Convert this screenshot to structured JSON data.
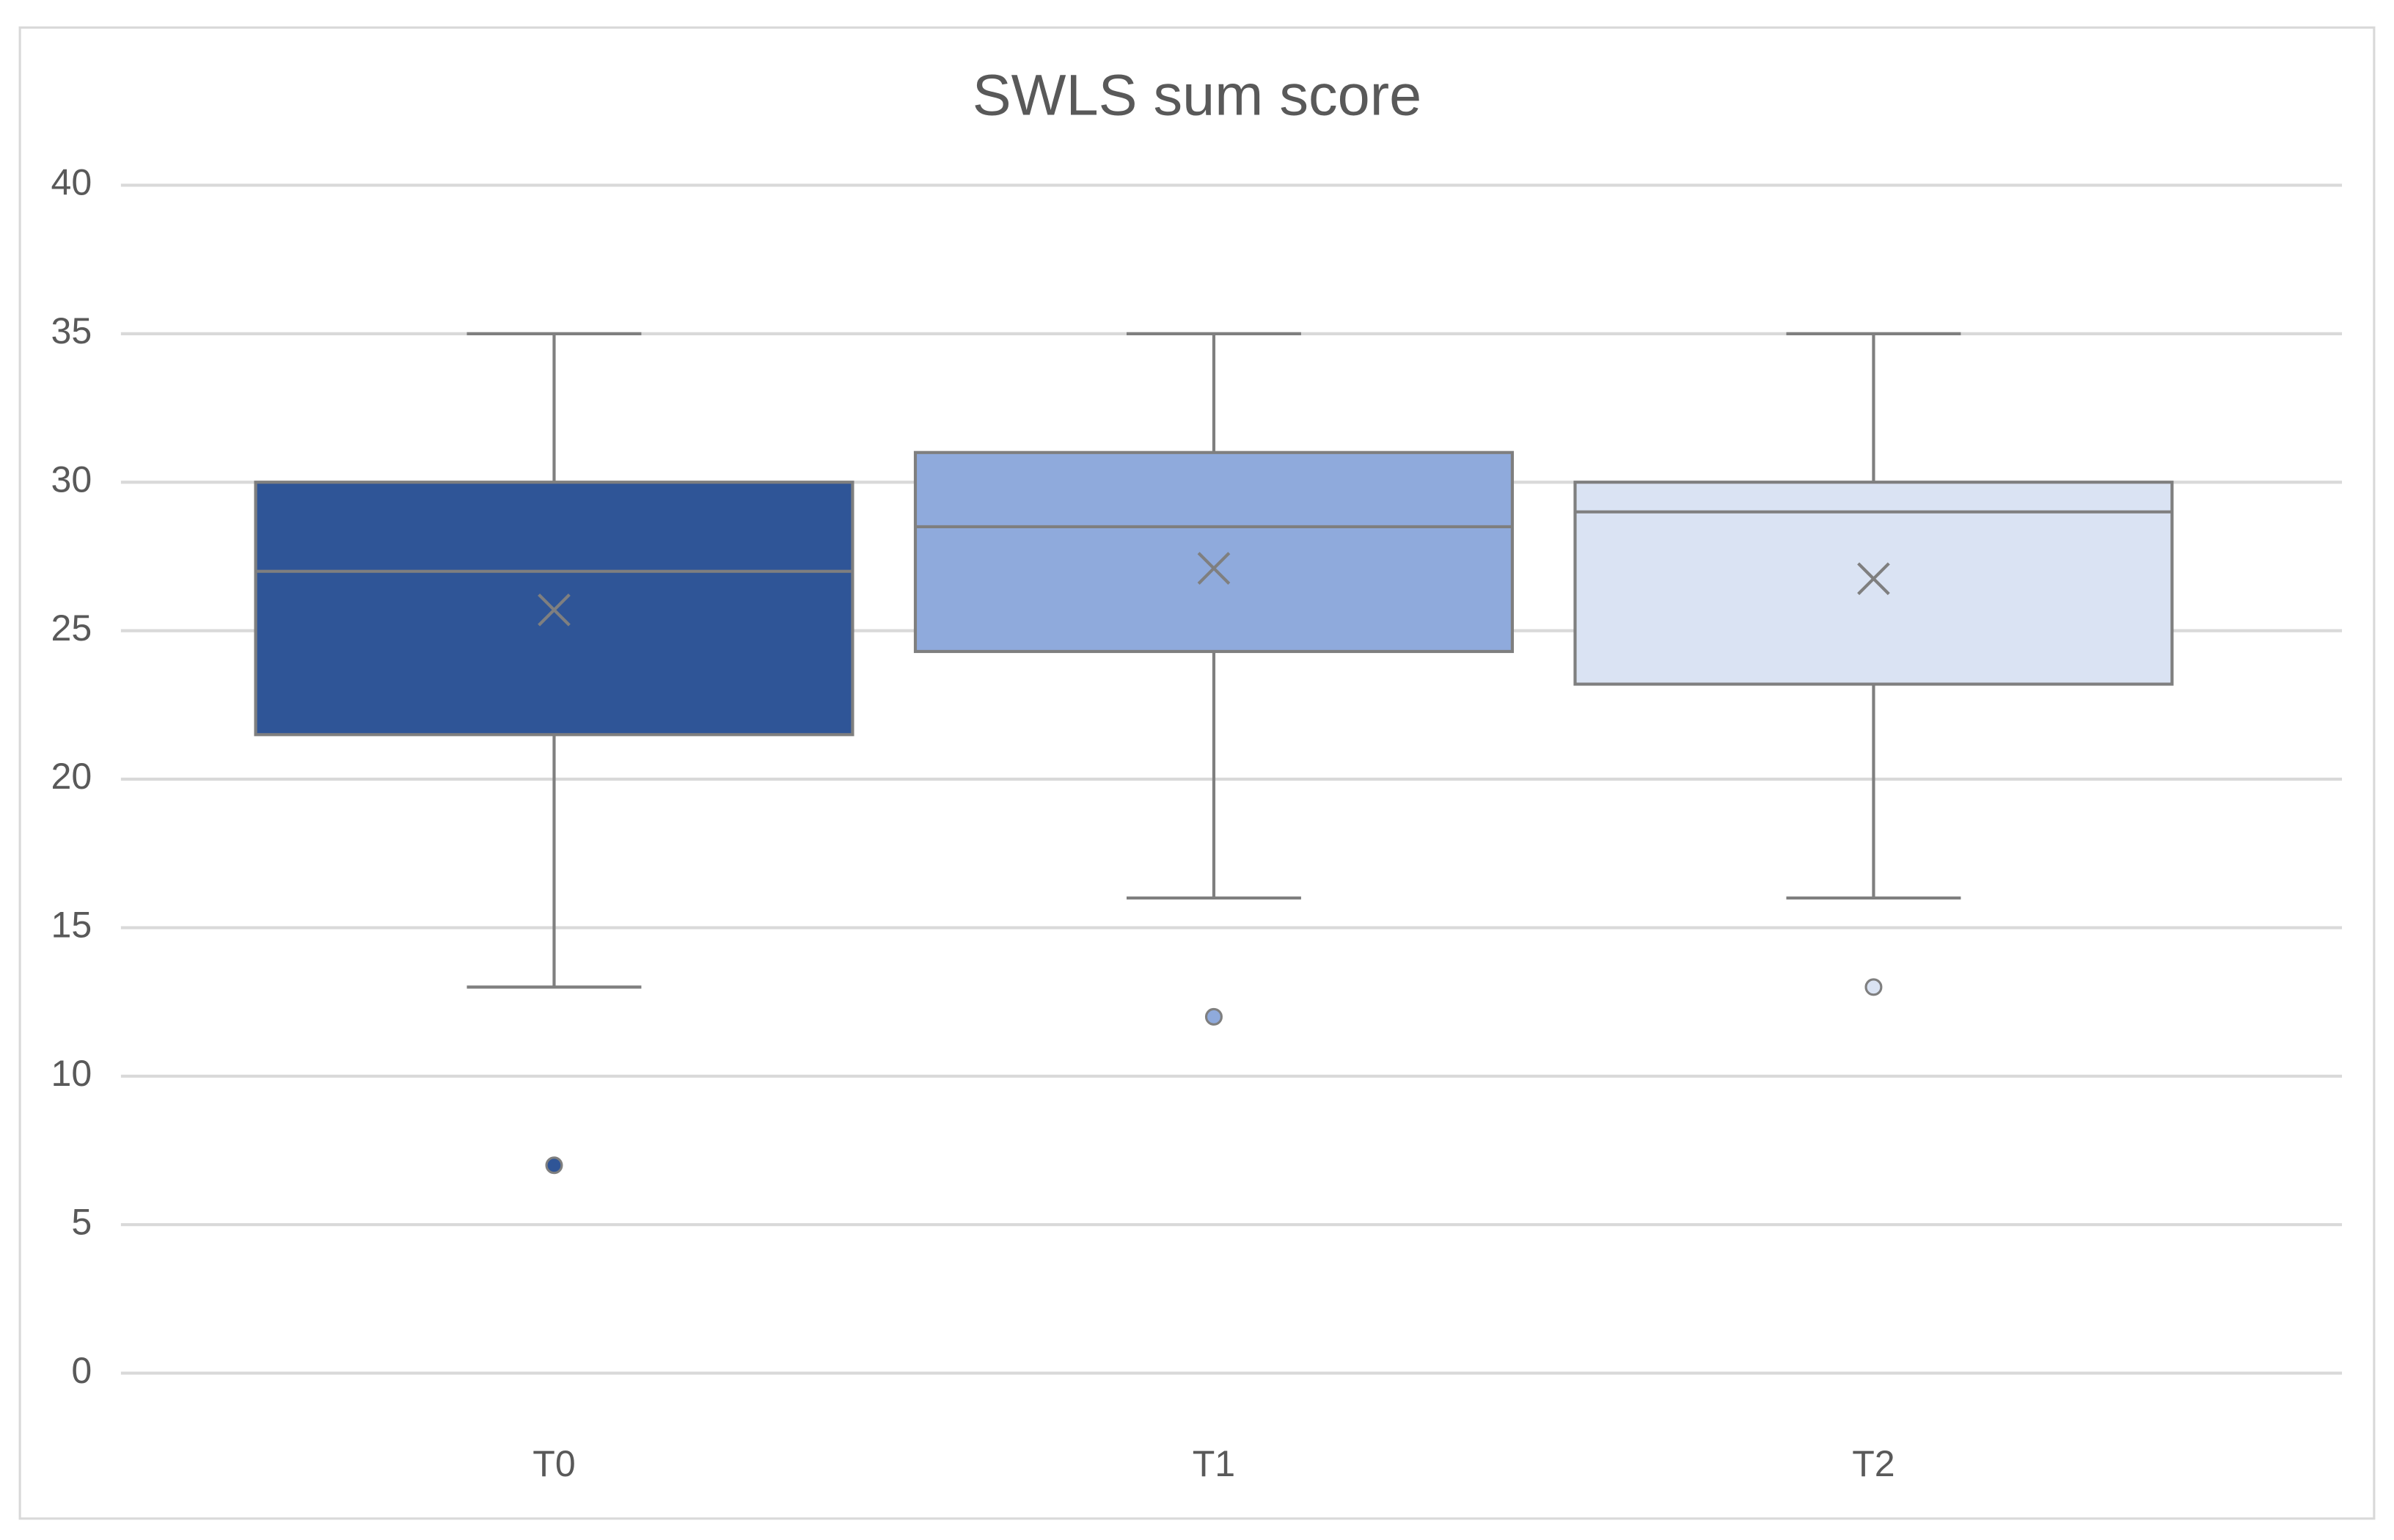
{
  "chart_data": {
    "type": "box",
    "title": "SWLS sum score",
    "categories": [
      "T0",
      "T1",
      "T2"
    ],
    "boxes": [
      {
        "color": "#2f5597",
        "min": 13,
        "q1": 21.5,
        "median": 27,
        "q3": 30,
        "max": 35,
        "mean": 25.7,
        "outliers": [
          7
        ]
      },
      {
        "color": "#8faadc",
        "min": 16,
        "q1": 24.3,
        "median": 28.5,
        "q3": 31,
        "max": 35,
        "mean": 27.1,
        "outliers": [
          12
        ]
      },
      {
        "color": "#dae3f3",
        "min": 16,
        "q1": 23.2,
        "median": 29,
        "q3": 30,
        "max": 35,
        "mean": 26.75,
        "outliers": [
          13
        ]
      }
    ],
    "ylim": [
      0,
      40
    ],
    "yticks": [
      0,
      5,
      10,
      15,
      20,
      25,
      30,
      35,
      40
    ],
    "grid": true
  }
}
